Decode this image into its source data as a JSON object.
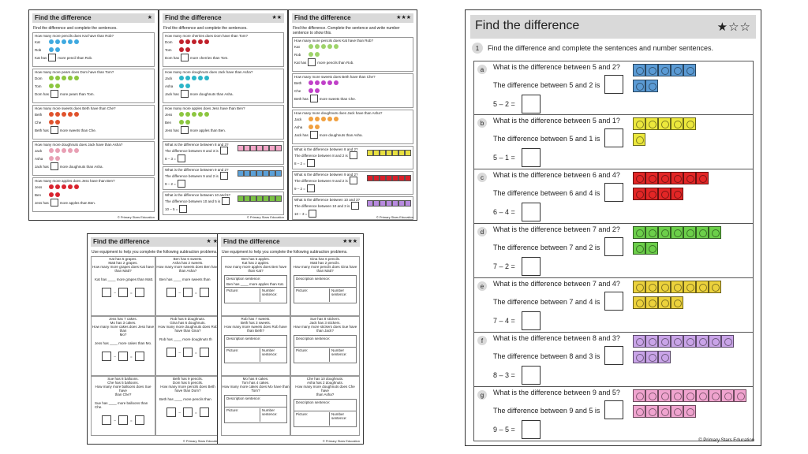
{
  "common": {
    "title": "Find the difference",
    "copyright": "© Primary Stars Education"
  },
  "mini1": {
    "stars": "★",
    "instruction": "Find the difference and complete the sentences.",
    "questions": [
      {
        "letter": "a",
        "text": "How many more pencils does Kat have than Rob?",
        "names": [
          "Kat",
          "Rob"
        ],
        "sentence_pre": "Kat has",
        "sentence_post": "more pencil than Rob.",
        "color": "#3fa9e0"
      },
      {
        "letter": "b",
        "text": "How many more pears does Dom have than Tom?",
        "names": [
          "Dom",
          "Tom"
        ],
        "sentence_pre": "Dom has",
        "sentence_post": "more pears than Tom.",
        "color": "#8cc63f"
      },
      {
        "letter": "c",
        "text": "How many more sweets does Beth have than Che?",
        "names": [
          "Beth",
          "Che"
        ],
        "sentence_pre": "Beth has",
        "sentence_post": "more sweets than Che.",
        "color": "#e0522c"
      },
      {
        "letter": "d",
        "text": "How many more doughnuts does Jack have than Asha?",
        "names": [
          "Jack",
          "Asha"
        ],
        "sentence_pre": "Jack has",
        "sentence_post": "more doughnuts than Asha.",
        "color": "#e8a0b4"
      },
      {
        "letter": "e",
        "text": "How many more apples does Jess have than Ben?",
        "names": [
          "Jess",
          "Ben"
        ],
        "sentence_pre": "Jess has",
        "sentence_post": "more apples than Ben.",
        "color": "#d9232e"
      }
    ]
  },
  "mini2": {
    "stars": "★★",
    "instruction": "Find the difference and complete the sentences.",
    "questions": [
      {
        "letter": "a",
        "text": "How many more cherries does Dom have than Tom?",
        "names": [
          "Dom",
          "Tom"
        ],
        "sentence_pre": "Dom has",
        "sentence_post": "more cherries than Tom.",
        "color": "#c0202a"
      },
      {
        "letter": "b",
        "text": "How many more doughnuts does Jack have than Asha?",
        "names": [
          "Jack",
          "Asha"
        ],
        "sentence_pre": "Jack has",
        "sentence_post": "more doughnuts than Asha.",
        "color": "#2bb5c8"
      },
      {
        "letter": "c",
        "text": "How many more apples does Jess have than Ben?",
        "names": [
          "Jess",
          "Ben"
        ],
        "sentence_pre": "Jess has",
        "sentence_post": "more apples than Ben.",
        "color": "#8cc63f"
      },
      {
        "letter": "d",
        "text": "What is the difference between 8 and 3?",
        "sentence": "The difference between 8 and 3 is",
        "eq": "8 – 3 =",
        "color": "#f3a6c8"
      },
      {
        "letter": "e",
        "text": "What is the difference between 9 and 2?",
        "sentence": "The difference between 9 and 2 is",
        "eq": "9 – 2 =",
        "color": "#5aa0d8"
      },
      {
        "letter": "f",
        "text": "What is the difference between 10 and 5?",
        "sentence": "The difference between 10 and 5 is",
        "eq": "10 – 5 =",
        "color": "#7ac143"
      }
    ]
  },
  "mini3": {
    "stars": "★★★",
    "instruction": "Find the difference. Complete the sentence and write number sentence to show this.",
    "questions": [
      {
        "letter": "a",
        "text": "How many more pencils does Kat have than Rob?",
        "names": [
          "Kat",
          "Rob"
        ],
        "sentence_pre": "Kat has",
        "sentence_post": "more pencils than Rob.",
        "color": "#9ed36a"
      },
      {
        "letter": "b",
        "text": "How many more sweets does Beth have than Che?",
        "names": [
          "Beth",
          "Che"
        ],
        "sentence_pre": "Beth has",
        "sentence_post": "more sweets than Che.",
        "color": "#c040c8"
      },
      {
        "letter": "c",
        "text": "How many more doughnuts does Jack have than Asha?",
        "names": [
          "Jack",
          "Asha"
        ],
        "sentence_pre": "Jack has",
        "sentence_post": "more doughnuts than Asha.",
        "color": "#f0a040"
      },
      {
        "letter": "d",
        "text": "What is the difference between 8 and 2?",
        "sentence": "The difference between 8 and 2 is",
        "eq": "8 – 2 =",
        "color": "#e8e040"
      },
      {
        "letter": "e",
        "text": "What is the difference between 9 and 2?",
        "sentence": "The difference between 9 and 2 is",
        "eq": "9 – 2 =",
        "color": "#d8202a"
      },
      {
        "letter": "f",
        "text": "What is the difference between 10 and 3?",
        "sentence": "The difference between 10 and 3 is",
        "eq": "10 – 3 =",
        "color": "#b88ae0"
      }
    ]
  },
  "low1": {
    "stars": "★ ★",
    "instruction": "Use equipment to help you complete the following subtraction problems.",
    "cells": [
      {
        "lines": [
          "Kat has 5 grapes.",
          "Matt has 2 grapes.",
          "How many more grapes does Kat have",
          "than Matt?"
        ],
        "answer": "Kat has ____ more grapes than Matt."
      },
      {
        "lines": [
          "Ben has 6 sweets.",
          "Asha has 2 sweets.",
          "How many more sweets does Ben have",
          "than Asha?"
        ],
        "answer": "Ben has ____ more sweets than"
      },
      {
        "lines": [
          "Jess has 7 cakes.",
          "Mo has 3 cakes.",
          "How many more cakes does Jess have than",
          "Mo?"
        ],
        "answer": "Jess has ____ more cakes than Mo."
      },
      {
        "lines": [
          "Rob has 8 doughnuts.",
          "Gina has 6 doughnuts.",
          "How many more doughnuts does Rob",
          "have than Gina?"
        ],
        "answer": "Rob has ____ more doughnuts th"
      },
      {
        "lines": [
          "Sue has 8 balloons.",
          "Che has 5 balloons.",
          "How many more balloons does Sue have",
          "than Che?"
        ],
        "answer": "Sue has ____ more balloons than Che."
      },
      {
        "lines": [
          "Beth has 9 pencils.",
          "Dom has 5 pencils.",
          "How many more pencils does Beth",
          "have than Dom?"
        ],
        "answer": "Beth has ____ more pencils than"
      }
    ]
  },
  "low2": {
    "stars": "★★★",
    "instruction": "Use equipment to help you complete the following subtraction problems.",
    "desc_label": "Description sentence:",
    "picture_label": "Picture:",
    "number_label": "Number sentence:",
    "cells": [
      {
        "lines": [
          "Ben has 5 apples.",
          "Kat has 2 apples.",
          "How many more apples does Ben have",
          "than Kat?"
        ],
        "answer": "Ben has ____ more apples than Kat."
      },
      {
        "lines": [
          "Gina has 6 pencils.",
          "Matt has 2 pencils.",
          "How many more pencils does Gina have",
          "than Matt?"
        ],
        "answer": ""
      },
      {
        "lines": [
          "Rob has 7 sweets.",
          "Beth has 3 sweets.",
          "How many more sweets does Rob have",
          "than Beth?"
        ],
        "answer": ""
      },
      {
        "lines": [
          "Sue has 8 stickers.",
          "Jack has 3 stickers.",
          "How many more stickers does Sue have",
          "than Jack?"
        ],
        "answer": ""
      },
      {
        "lines": [
          "Mo has 9 cakes.",
          "Tom has 4 cakes.",
          "How many more cakes does Mo have than",
          "Tom?"
        ],
        "answer": ""
      },
      {
        "lines": [
          "Che has 10 doughnuts.",
          "Asha has 2 doughnuts.",
          "How many more doughnuts does Che have",
          "than Asha?"
        ],
        "answer": ""
      }
    ]
  },
  "big": {
    "title": "Find the difference",
    "stars": "★☆☆",
    "instruction_num": "1",
    "instruction": "Find the difference and complete the sentences and number sentences.",
    "questions": [
      {
        "letter": "a",
        "question": "What is the difference between 5 and 2?",
        "sentence": "The difference between 5 and 2 is",
        "equation": "5 – 2 =",
        "color": "#5b9bd5",
        "row1": 5,
        "row2": 2
      },
      {
        "letter": "b",
        "question": "What is the difference between 5 and 1?",
        "sentence": "The difference between 5 and 1 is",
        "equation": "5 – 1 =",
        "color": "#ece83c",
        "row1": 5,
        "row2": 1
      },
      {
        "letter": "c",
        "question": "What is the difference between 6 and 4?",
        "sentence": "The difference between 6 and 4 is",
        "equation": "6 – 4 =",
        "color": "#e32626",
        "row1": 6,
        "row2": 4
      },
      {
        "letter": "d",
        "question": "What is the difference between 7 and 2?",
        "sentence": "The difference between 7 and 2 is",
        "equation": "7 – 2 =",
        "color": "#6ccf4a",
        "row1": 7,
        "row2": 2
      },
      {
        "letter": "e",
        "question": "What is the difference between 7 and 4?",
        "sentence": "The difference between 7 and 4 is",
        "equation": "7 – 4 =",
        "color": "#ecd23c",
        "row1": 7,
        "row2": 4
      },
      {
        "letter": "f",
        "question": "What is the difference between 8 and 3?",
        "sentence": "The difference between 8 and 3 is",
        "equation": "8 – 3 =",
        "color": "#c9a4e8",
        "row1": 8,
        "row2": 3
      },
      {
        "letter": "g",
        "question": "What is the difference between 9 and 5?",
        "sentence": "The difference between 9 and 5 is",
        "equation": "9 – 5 =",
        "color": "#f0a4cf",
        "row1": 9,
        "row2": 5
      }
    ]
  }
}
